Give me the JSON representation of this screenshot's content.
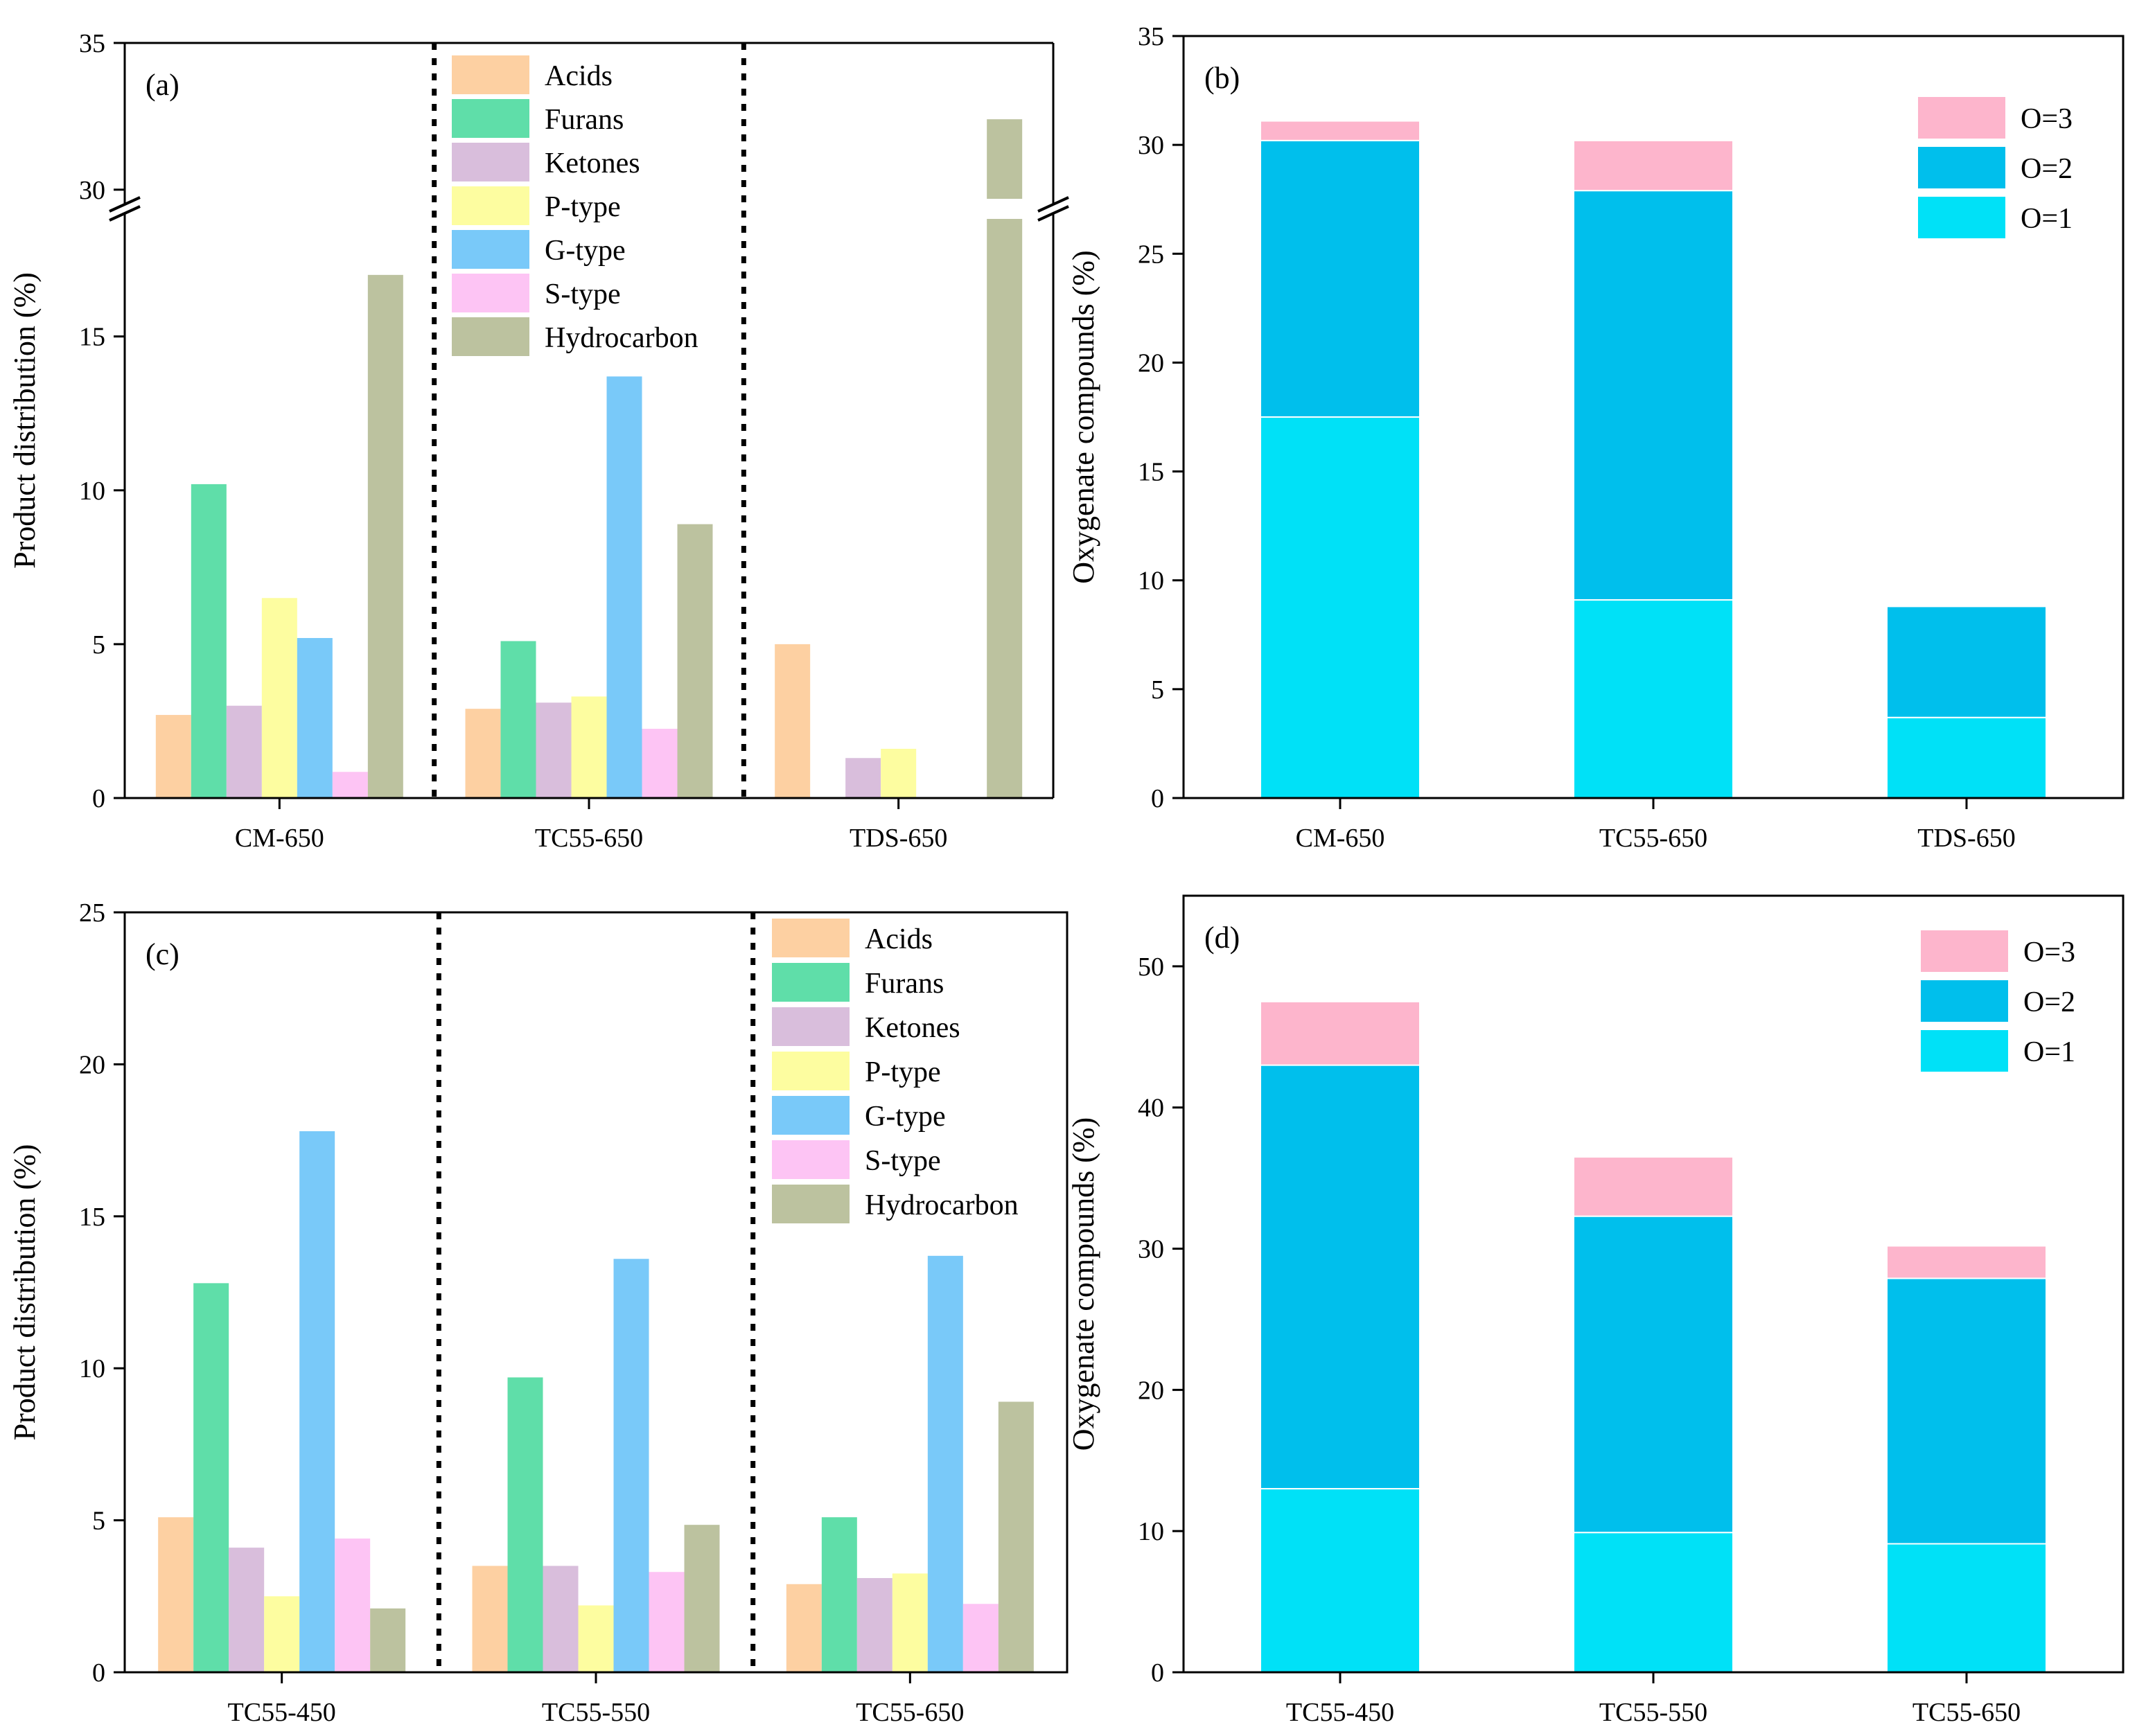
{
  "chart_data": [
    {
      "panel_label": "(a)",
      "type": "bar",
      "categories": [
        "CM-650",
        "TC55-650",
        "TDS-650"
      ],
      "ylabel": "Product distribution (%)",
      "ylim_lower": [
        0,
        19
      ],
      "ylim_upper": [
        29.5,
        35
      ],
      "yticks": [
        0,
        5,
        10,
        15,
        30,
        35
      ],
      "ytick_labels": [
        "0",
        "5",
        "10",
        "15",
        "30",
        "35"
      ],
      "axis_break": true,
      "group_separators": "dotted",
      "legend_position": "top-center",
      "series": [
        {
          "name": "Acids",
          "values": [
            2.7,
            2.9,
            5.0
          ]
        },
        {
          "name": "Furans",
          "values": [
            10.2,
            5.1,
            0
          ]
        },
        {
          "name": "Ketones",
          "values": [
            3.0,
            3.1,
            1.3
          ]
        },
        {
          "name": "P-type",
          "values": [
            6.5,
            3.3,
            1.6
          ]
        },
        {
          "name": "G-type",
          "values": [
            5.2,
            13.7,
            0
          ]
        },
        {
          "name": "S-type",
          "values": [
            0.85,
            2.25,
            0
          ]
        },
        {
          "name": "Hydrocarbon",
          "values": [
            17.0,
            8.9,
            32.4
          ]
        }
      ]
    },
    {
      "panel_label": "(b)",
      "type": "bar",
      "stacked": true,
      "categories": [
        "CM-650",
        "TC55-650",
        "TDS-650"
      ],
      "ylabel": "Oxygenate compounds (%)",
      "ylim": [
        0,
        35
      ],
      "yticks": [
        0,
        5,
        10,
        15,
        20,
        25,
        30,
        35
      ],
      "ytick_labels": [
        "0",
        "5",
        "10",
        "15",
        "20",
        "25",
        "30",
        "35"
      ],
      "legend_position": "top-right",
      "series": [
        {
          "name": "O=1",
          "values": [
            17.5,
            9.1,
            3.7
          ]
        },
        {
          "name": "O=2",
          "values": [
            12.7,
            18.8,
            5.1
          ]
        },
        {
          "name": "O=3",
          "values": [
            0.9,
            2.3,
            0
          ]
        }
      ]
    },
    {
      "panel_label": "(c)",
      "type": "bar",
      "categories": [
        "TC55-450",
        "TC55-550",
        "TC55-650"
      ],
      "ylabel": "Product distribution (%)",
      "ylim": [
        0,
        25
      ],
      "yticks": [
        0,
        5,
        10,
        15,
        20,
        25
      ],
      "ytick_labels": [
        "0",
        "5",
        "10",
        "15",
        "20",
        "25"
      ],
      "group_separators": "dotted",
      "legend_position": "top-right",
      "series": [
        {
          "name": "Acids",
          "values": [
            5.1,
            3.5,
            2.9
          ]
        },
        {
          "name": "Furans",
          "values": [
            12.8,
            9.7,
            5.1
          ]
        },
        {
          "name": "Ketones",
          "values": [
            4.1,
            3.5,
            3.1
          ]
        },
        {
          "name": "P-type",
          "values": [
            2.5,
            2.2,
            3.25
          ]
        },
        {
          "name": "G-type",
          "values": [
            17.8,
            13.6,
            13.7
          ]
        },
        {
          "name": "S-type",
          "values": [
            4.4,
            3.3,
            2.25
          ]
        },
        {
          "name": "Hydrocarbon",
          "values": [
            2.1,
            4.85,
            8.9
          ]
        }
      ]
    },
    {
      "panel_label": "(d)",
      "type": "bar",
      "stacked": true,
      "categories": [
        "TC55-450",
        "TC55-550",
        "TC55-650"
      ],
      "ylabel": "Oxygenate compounds (%)",
      "ylim": [
        0,
        55
      ],
      "yticks": [
        0,
        10,
        20,
        30,
        40,
        50
      ],
      "ytick_labels": [
        "0",
        "10",
        "20",
        "30",
        "40",
        "50"
      ],
      "legend_position": "top-right",
      "series": [
        {
          "name": "O=1",
          "values": [
            13.0,
            9.9,
            9.1
          ]
        },
        {
          "name": "O=2",
          "values": [
            30.0,
            22.4,
            18.8
          ]
        },
        {
          "name": "O=3",
          "values": [
            4.5,
            4.2,
            2.3
          ]
        }
      ]
    }
  ],
  "colors": {
    "Acids": "#fdd0a2",
    "Furans": "#5fdea9",
    "Ketones": "#d9bedc",
    "P-type": "#fdfda0",
    "G-type": "#79c9f9",
    "S-type": "#fdc4f4",
    "Hydrocarbon": "#bcc29f",
    "O=1": "#00e1f7",
    "O=2": "#00bfec",
    "O=3": "#fdb5cc"
  }
}
